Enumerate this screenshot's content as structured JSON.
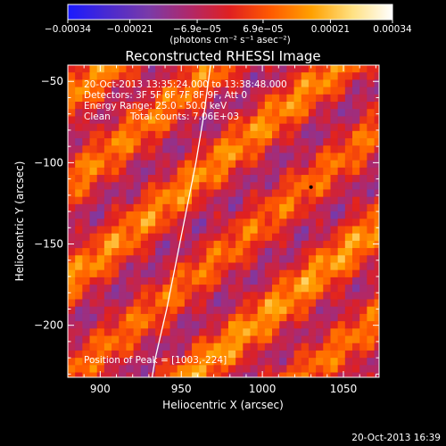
{
  "chart_data": {
    "type": "heatmap",
    "title": "Reconstructed RHESSI Image",
    "xlabel": "Heliocentric X (arcsec)",
    "ylabel": "Heliocentric Y (arcsec)",
    "xlim": [
      880,
      1072
    ],
    "ylim": [
      -232,
      -40
    ],
    "x_ticks": [
      900,
      950,
      1000,
      1050
    ],
    "y_ticks": [
      -50,
      -100,
      -150,
      -200
    ],
    "x_tick_labels": [
      "900",
      "950",
      "1000",
      "1050"
    ],
    "y_tick_labels": [
      "−50",
      "−100",
      "−150",
      "−200"
    ],
    "colorbar": {
      "range": [
        -0.00034,
        0.00034
      ],
      "ticks": [
        -0.00034,
        -0.00021,
        -6.9e-05,
        6.9e-05,
        0.00021,
        0.00034
      ],
      "tick_labels": [
        "−0.00034",
        "−0.00021",
        "−6.9e−05",
        "6.9e−05",
        "0.00021",
        "0.00034"
      ],
      "unit_label": "(photons cm⁻² s⁻¹ asec⁻²)",
      "colors": [
        "#1a1aff",
        "#4a2ad0",
        "#7a3aa8",
        "#b0286a",
        "#e02020",
        "#ff5a00",
        "#ffa000",
        "#ffe080",
        "#ffffff"
      ]
    },
    "annotations": {
      "time_range": "20-Oct-2013 13:35:24.000 to 13:38:48.000",
      "detectors": "Detectors: 3F 5F 6F 7F 8F 9F, Att 0",
      "energy": "Energy Range: 25.0 - 50.0 keV",
      "method": "Clean",
      "counts": "Total counts: 7.06E+03",
      "peak": "Position of Peak = [1003,-224]"
    },
    "peak_position": [
      1003,
      -224
    ],
    "limb_curve": [
      [
        968,
        -40
      ],
      [
        964,
        -70
      ],
      [
        959,
        -100
      ],
      [
        953,
        -130
      ],
      [
        947,
        -160
      ],
      [
        941,
        -190
      ],
      [
        934,
        -220
      ],
      [
        932,
        -232
      ]
    ],
    "bands": [
      {
        "k": 16,
        "amp": 0.0003
      },
      {
        "k": 58,
        "amp": 0.00028
      },
      {
        "k": 104,
        "amp": 0.0003
      },
      {
        "k": 150,
        "amp": 0.00026
      },
      {
        "k": 196,
        "amp": 0.00032
      },
      {
        "k": 240,
        "amp": 0.00027
      },
      {
        "k": 285,
        "amp": 0.00034
      }
    ]
  },
  "footer": {
    "timestamp": "20-Oct-2013 16:39"
  }
}
